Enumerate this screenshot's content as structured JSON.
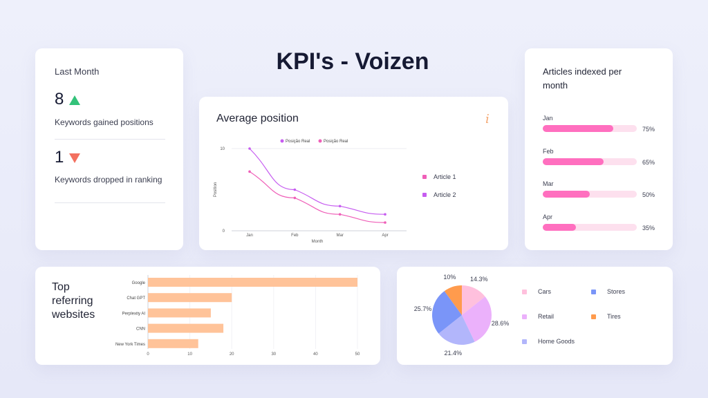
{
  "title": "KPI's - Voizen",
  "kpi": {
    "heading": "Last Month",
    "gained_value": "8",
    "gained_label": "Keywords gained positions",
    "dropped_value": "1",
    "dropped_label": "Keywords dropped in ranking",
    "up_color": "#33c27a",
    "down_color": "#f3705f"
  },
  "average_position": {
    "title": "Average position",
    "info_icon": "i",
    "side_legend": [
      "Article 1",
      "Article 2"
    ],
    "chart_data": {
      "type": "line",
      "x": [
        "Jan",
        "Feb",
        "Mar",
        "Apr"
      ],
      "xlabel": "Month",
      "ylabel": "Position",
      "ylim": [
        0,
        10
      ],
      "yticks": [
        "0",
        "10"
      ],
      "legend_position": "top",
      "series": [
        {
          "name": "Posição Real",
          "values": [
            10,
            5,
            3,
            2
          ],
          "color": "#c65cf0"
        },
        {
          "name": "Posição Real",
          "values": [
            7.2,
            4,
            2,
            1
          ],
          "color": "#ef5fb8"
        }
      ]
    }
  },
  "articles": {
    "title": "Articles indexed per month",
    "chart_data": {
      "type": "bar",
      "categories": [
        "Jan",
        "Feb",
        "Mar",
        "Apr"
      ],
      "values": [
        75,
        65,
        50,
        35
      ],
      "labels": [
        "75%",
        "65%",
        "50%",
        "35%"
      ],
      "ylim": [
        0,
        100
      ]
    }
  },
  "referring": {
    "title": "Top referring websites",
    "chart_data": {
      "type": "bar",
      "orientation": "horizontal",
      "categories": [
        "Google",
        "Chat GPT",
        "Perplexity AI",
        "CNN",
        "New York Times"
      ],
      "values": [
        50,
        20,
        15,
        18,
        12
      ],
      "xlim": [
        0,
        50
      ],
      "xticks": [
        "0",
        "10",
        "20",
        "30",
        "40",
        "50"
      ],
      "color": "#ffc399"
    }
  },
  "sources": {
    "chart_data": {
      "type": "pie",
      "slices": [
        {
          "name": "Cars",
          "value": 14.3,
          "label": "14.3%",
          "color": "#ffc0dd"
        },
        {
          "name": "Retail",
          "value": 28.6,
          "label": "28.6%",
          "color": "#ebb1fb"
        },
        {
          "name": "Home Goods",
          "value": 21.4,
          "label": "21.4%",
          "color": "#b2b6fb"
        },
        {
          "name": "Stores",
          "value": 25.7,
          "label": "25.7%",
          "color": "#7a95f8"
        },
        {
          "name": "Tires",
          "value": 10,
          "label": "10%",
          "color": "#ff9b4d"
        }
      ],
      "legend_position": "right"
    }
  }
}
